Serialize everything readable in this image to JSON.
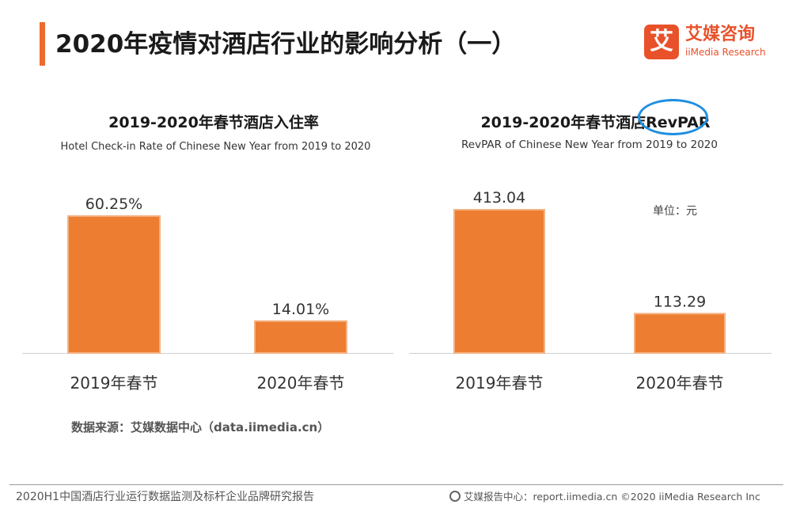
{
  "header": {
    "title": "2020年疫情对酒店行业的影响分析（一）",
    "accent_color": "#ee6b2d"
  },
  "logo": {
    "mark": "艾",
    "name_cn": "艾媒咨询",
    "name_en": "iiMedia Research",
    "color": "#e8512a"
  },
  "chart_data": [
    {
      "type": "bar",
      "title": "2019-2020年春节酒店入住率",
      "subtitle": "Hotel Check-in Rate of Chinese New Year  from 2019 to 2020",
      "categories": [
        "2019年春节",
        "2020年春节"
      ],
      "values": [
        60.25,
        14.01
      ],
      "value_labels": [
        "60.25%",
        "14.01%"
      ],
      "ylim": [
        0,
        62
      ],
      "grid": false,
      "bar_color": "#ed7d31",
      "bar_edge_color": "#f4b183"
    },
    {
      "type": "bar",
      "title": "2019-2020年春节酒店RevPAR",
      "subtitle": "RevPAR of Chinese New Year from 2019 to 2020",
      "unit": "单位：元",
      "categories": [
        "2019年春节",
        "2020年春节"
      ],
      "values": [
        413.04,
        113.29
      ],
      "value_labels": [
        "413.04",
        "113.29"
      ],
      "ylim": [
        0,
        420
      ],
      "grid": false,
      "bar_color": "#ed7d31",
      "bar_edge_color": "#f4b183",
      "highlight_color": "#1e8fe0"
    }
  ],
  "source": "数据来源：艾媒数据中心（data.iimedia.cn）",
  "footer": {
    "left": "2020H1中国酒店行业运行数据监测及标杆企业品牌研究报告",
    "right": "艾媒报告中心：report.iimedia.cn   ©2020  iiMedia Research  Inc"
  }
}
